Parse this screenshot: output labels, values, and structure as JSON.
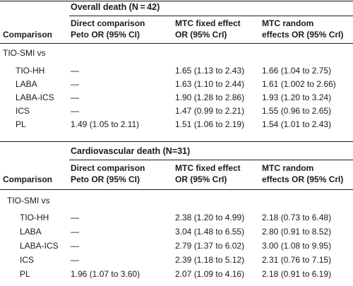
{
  "sections": [
    {
      "title": "Overall death (N = 42)",
      "headers": {
        "comparison": "Comparison",
        "direct_line1": "Direct comparison",
        "direct_line2": "Peto OR (95% CI)",
        "fixed_line1": "MTC fixed effect",
        "fixed_line2": "OR (95% CrI)",
        "random_line1": "MTC random",
        "random_line2": "effects OR (95% CrI)"
      },
      "group_label": "TIO-SMI vs",
      "rows": [
        {
          "comparison": "TIO-HH",
          "direct": "—",
          "fixed": "1.65 (1.13 to 2.43)",
          "random": "1.66 (1.04 to 2.75)"
        },
        {
          "comparison": "LABA",
          "direct": "—",
          "fixed": "1.63 (1.10 to 2.44)",
          "random": "1.61 (1.002 to 2.66)"
        },
        {
          "comparison": "LABA-ICS",
          "direct": "—",
          "fixed": "1.90 (1.28 to 2.86)",
          "random": "1.93 (1.20 to 3.24)"
        },
        {
          "comparison": "ICS",
          "direct": "—",
          "fixed": "1.47 (0.99 to 2.21)",
          "random": "1.55 (0.96 to 2.65)"
        },
        {
          "comparison": "PL",
          "direct": "1.49 (1.05 to 2.11)",
          "fixed": "1.51 (1.06 to 2.19)",
          "random": "1.54 (1.01 to 2.43)"
        }
      ]
    },
    {
      "title": "Cardiovascular death (N=31)",
      "headers": {
        "comparison": "Comparison",
        "direct_line1": "Direct comparison",
        "direct_line2": "Peto OR (95% CI)",
        "fixed_line1": "MTC fixed effect",
        "fixed_line2": "OR (95% CrI)",
        "random_line1": "MTC random",
        "random_line2": "effects OR (95% CrI)"
      },
      "group_label": "TIO-SMI vs",
      "rows": [
        {
          "comparison": "TIO-HH",
          "direct": "—",
          "fixed": "2.38 (1.20 to 4.99)",
          "random": "2.18 (0.73 to 6.48)"
        },
        {
          "comparison": "LABA",
          "direct": "—",
          "fixed": "3.04 (1.48 to 6.55)",
          "random": "2.80 (0.91 to 8.52)"
        },
        {
          "comparison": "LABA-ICS",
          "direct": "—",
          "fixed": "2.79 (1.37 to 6.02)",
          "random": "3.00 (1.08 to 9.95)"
        },
        {
          "comparison": "ICS",
          "direct": "—",
          "fixed": "2.39 (1.18 to 5.12)",
          "random": "2.31 (0.76 to 7.15)"
        },
        {
          "comparison": "PL",
          "direct": "1.96 (1.07 to 3.60)",
          "fixed": "2.07 (1.09 to 4.16)",
          "random": "2.18 (0.91 to 6.19)"
        }
      ]
    }
  ]
}
